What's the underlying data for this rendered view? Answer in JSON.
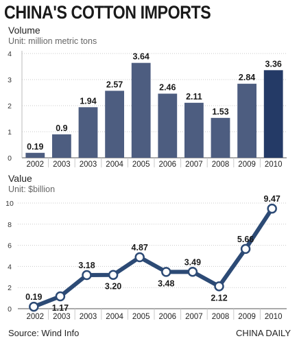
{
  "header": {
    "title": "CHINA'S COTTON IMPORTS"
  },
  "chart_data": [
    {
      "type": "bar",
      "title": "Volume",
      "subtitle": "Unit: million metric tons",
      "categories": [
        "2002",
        "2003",
        "2003",
        "2004",
        "2005",
        "2006",
        "2007",
        "2008",
        "2009",
        "2010"
      ],
      "values": [
        0.19,
        0.9,
        1.94,
        2.57,
        3.64,
        2.46,
        2.11,
        1.53,
        2.84,
        3.36
      ],
      "value_labels": [
        "0.19",
        "0.9",
        "1.94",
        "2.57",
        "3.64",
        "2.46",
        "2.11",
        "1.53",
        "2.84",
        "3.36"
      ],
      "yticks": [
        "0",
        "1",
        "2",
        "3",
        "4"
      ],
      "ylim": [
        0,
        4
      ],
      "grid": true,
      "colors": {
        "bar": "#4d5d80",
        "highlight": "#243a66"
      }
    },
    {
      "type": "line",
      "title": "Value",
      "subtitle": "Unit: $billion",
      "categories": [
        "2002",
        "2003",
        "2003",
        "2004",
        "2005",
        "2006",
        "2007",
        "2008",
        "2009",
        "2010"
      ],
      "values": [
        0.19,
        1.17,
        3.18,
        3.2,
        4.87,
        3.48,
        3.49,
        2.12,
        5.66,
        9.47
      ],
      "value_labels": [
        "0.19",
        "1.17",
        "3.18",
        "3.20",
        "4.87",
        "3.48",
        "3.49",
        "2.12",
        "5.66",
        "9.47"
      ],
      "yticks": [
        "0",
        "2",
        "4",
        "6",
        "8",
        "10"
      ],
      "ylim": [
        0,
        10
      ],
      "grid": true,
      "colors": {
        "line": "#2c4a75"
      }
    }
  ],
  "footer": {
    "source": "Source: Wind Info",
    "credit": "CHINA DAILY"
  }
}
